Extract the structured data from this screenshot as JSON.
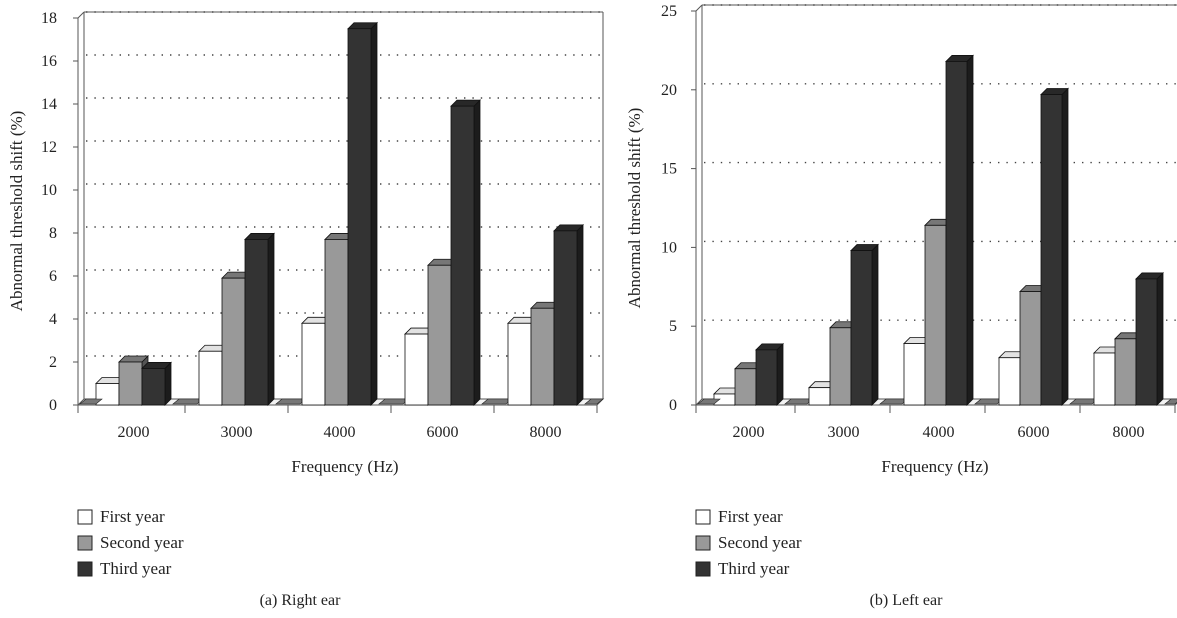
{
  "chart_data": [
    {
      "type": "bar",
      "style": "3d-clustered",
      "caption": "(a)  Right ear",
      "xlabel": "Frequency (Hz)",
      "ylabel": "Abnormal threshold shift (%)",
      "ylim": [
        0,
        18
      ],
      "yticks": [
        0,
        2,
        4,
        6,
        8,
        10,
        12,
        14,
        16,
        18
      ],
      "grid": "dotted-horizontal",
      "legend_position": "bottom-left",
      "categories": [
        "2000",
        "3000",
        "4000",
        "6000",
        "8000"
      ],
      "series": [
        {
          "name": "First year",
          "color": "#ffffff",
          "values": [
            1.0,
            2.5,
            3.8,
            3.3,
            3.8
          ]
        },
        {
          "name": "Second year",
          "color": "#999999",
          "values": [
            2.0,
            5.9,
            7.7,
            6.5,
            4.5
          ]
        },
        {
          "name": "Third year",
          "color": "#333333",
          "values": [
            1.7,
            7.7,
            17.5,
            13.9,
            8.1
          ]
        }
      ]
    },
    {
      "type": "bar",
      "style": "3d-clustered",
      "caption": "(b)  Left ear",
      "xlabel": "Frequency (Hz)",
      "ylabel": "Abnormal threshold shift (%)",
      "ylim": [
        0,
        25
      ],
      "yticks": [
        0,
        5,
        10,
        15,
        20,
        25
      ],
      "grid": "dotted-horizontal",
      "legend_position": "bottom-left",
      "categories": [
        "2000",
        "3000",
        "4000",
        "6000",
        "8000"
      ],
      "series": [
        {
          "name": "First year",
          "color": "#ffffff",
          "values": [
            0.7,
            1.1,
            3.9,
            3.0,
            3.3
          ]
        },
        {
          "name": "Second year",
          "color": "#999999",
          "values": [
            2.3,
            4.9,
            11.4,
            7.2,
            4.2
          ]
        },
        {
          "name": "Third year",
          "color": "#333333",
          "values": [
            3.5,
            9.8,
            21.8,
            19.7,
            8.0
          ]
        }
      ]
    }
  ]
}
